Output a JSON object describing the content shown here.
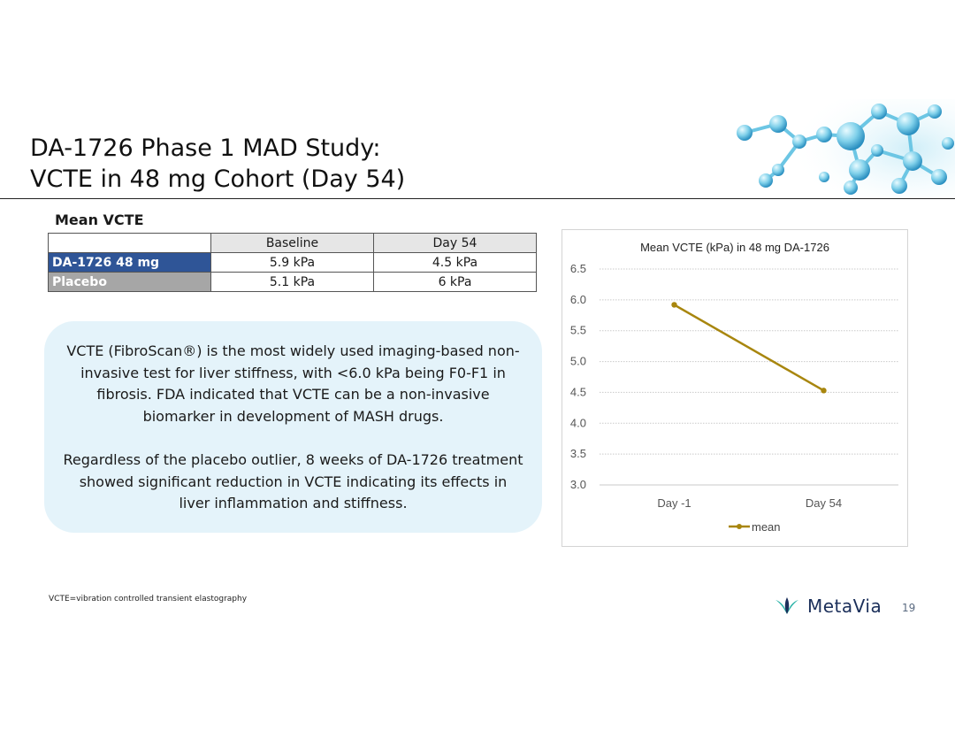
{
  "slide": {
    "title_line1": "DA-1726 Phase 1 MAD Study:",
    "title_line2": "VCTE in 48 mg Cohort (Day 54)",
    "table_heading": "Mean VCTE",
    "footnote": "VCTE=vibration controlled transient elastography",
    "logo_text": "MetaVia",
    "page_number": "19"
  },
  "table": {
    "columns": [
      "",
      "Baseline",
      "Day 54"
    ],
    "rows": [
      {
        "label": "DA-1726 48 mg",
        "baseline": "5.9 kPa",
        "day54": "4.5 kPa"
      },
      {
        "label": "Placebo",
        "baseline": "5.1 kPa",
        "day54": "6 kPa"
      }
    ]
  },
  "note": {
    "paragraph1": "VCTE (FibroScan®) is the most widely used imaging-based non-invasive test for liver stiffness, with <6.0 kPa being F0-F1 in fibrosis. FDA indicated that VCTE can be a non-invasive biomarker in development of MASH drugs.",
    "paragraph2": "Regardless of the placebo outlier, 8 weeks of DA-1726 treatment showed significant reduction in VCTE indicating its effects in liver inflammation and stiffness."
  },
  "colors": {
    "line": "#a8860e",
    "drug_row": "#2f5597",
    "placebo_row": "#a6a6a6",
    "note_bg": "#e4f3fa",
    "logo_leaf": "#2bb3a8"
  },
  "chart_data": {
    "type": "line",
    "title": "Mean VCTE (kPa) in 48 mg DA-1726",
    "categories": [
      "Day -1",
      "Day 54"
    ],
    "series": [
      {
        "name": "mean",
        "values": [
          5.92,
          4.53
        ]
      }
    ],
    "ylim": [
      3.0,
      6.5
    ],
    "yticks": [
      "3.0",
      "3.5",
      "4.0",
      "4.5",
      "5.0",
      "5.5",
      "6.0",
      "6.5"
    ],
    "xlabel": "",
    "ylabel": "",
    "grid": true,
    "legend": "bottom"
  }
}
